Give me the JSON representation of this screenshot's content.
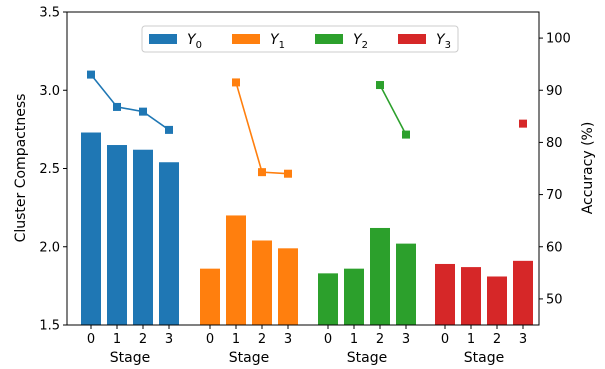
{
  "chart_data": {
    "type": "bar",
    "groups": [
      "Y_0",
      "Y_1",
      "Y_2",
      "Y_3"
    ],
    "categories": [
      "0",
      "1",
      "2",
      "3"
    ],
    "xlabel": "Stage",
    "ylabel_left": "Cluster Compactness",
    "ylabel_right": "Accuracy (%)",
    "ylim_left": [
      1.5,
      3.5
    ],
    "yticks_left": [
      "1.5",
      "2.0",
      "2.5",
      "3.0",
      "3.5"
    ],
    "ylim_right": [
      45,
      105
    ],
    "yticks_right": [
      "50",
      "60",
      "70",
      "80",
      "90",
      "100"
    ],
    "grid": false,
    "legend_position": "top-center",
    "series": [
      {
        "name": "Y_0",
        "color": "#1f77b4",
        "bars": [
          2.73,
          2.65,
          2.62,
          2.54
        ],
        "accuracy": [
          93,
          86.8,
          85.9,
          82.4
        ]
      },
      {
        "name": "Y_1",
        "color": "#ff7f0e",
        "bars": [
          1.86,
          2.2,
          2.04,
          1.99
        ],
        "accuracy": [
          null,
          91.5,
          74.3,
          74.0
        ]
      },
      {
        "name": "Y_2",
        "color": "#2ca02c",
        "bars": [
          1.83,
          1.86,
          2.12,
          2.02
        ],
        "accuracy": [
          null,
          null,
          91.0,
          81.5
        ]
      },
      {
        "name": "Y_3",
        "color": "#d62728",
        "bars": [
          1.89,
          1.87,
          1.81,
          1.91
        ],
        "accuracy": [
          null,
          null,
          null,
          83.6
        ]
      }
    ]
  }
}
